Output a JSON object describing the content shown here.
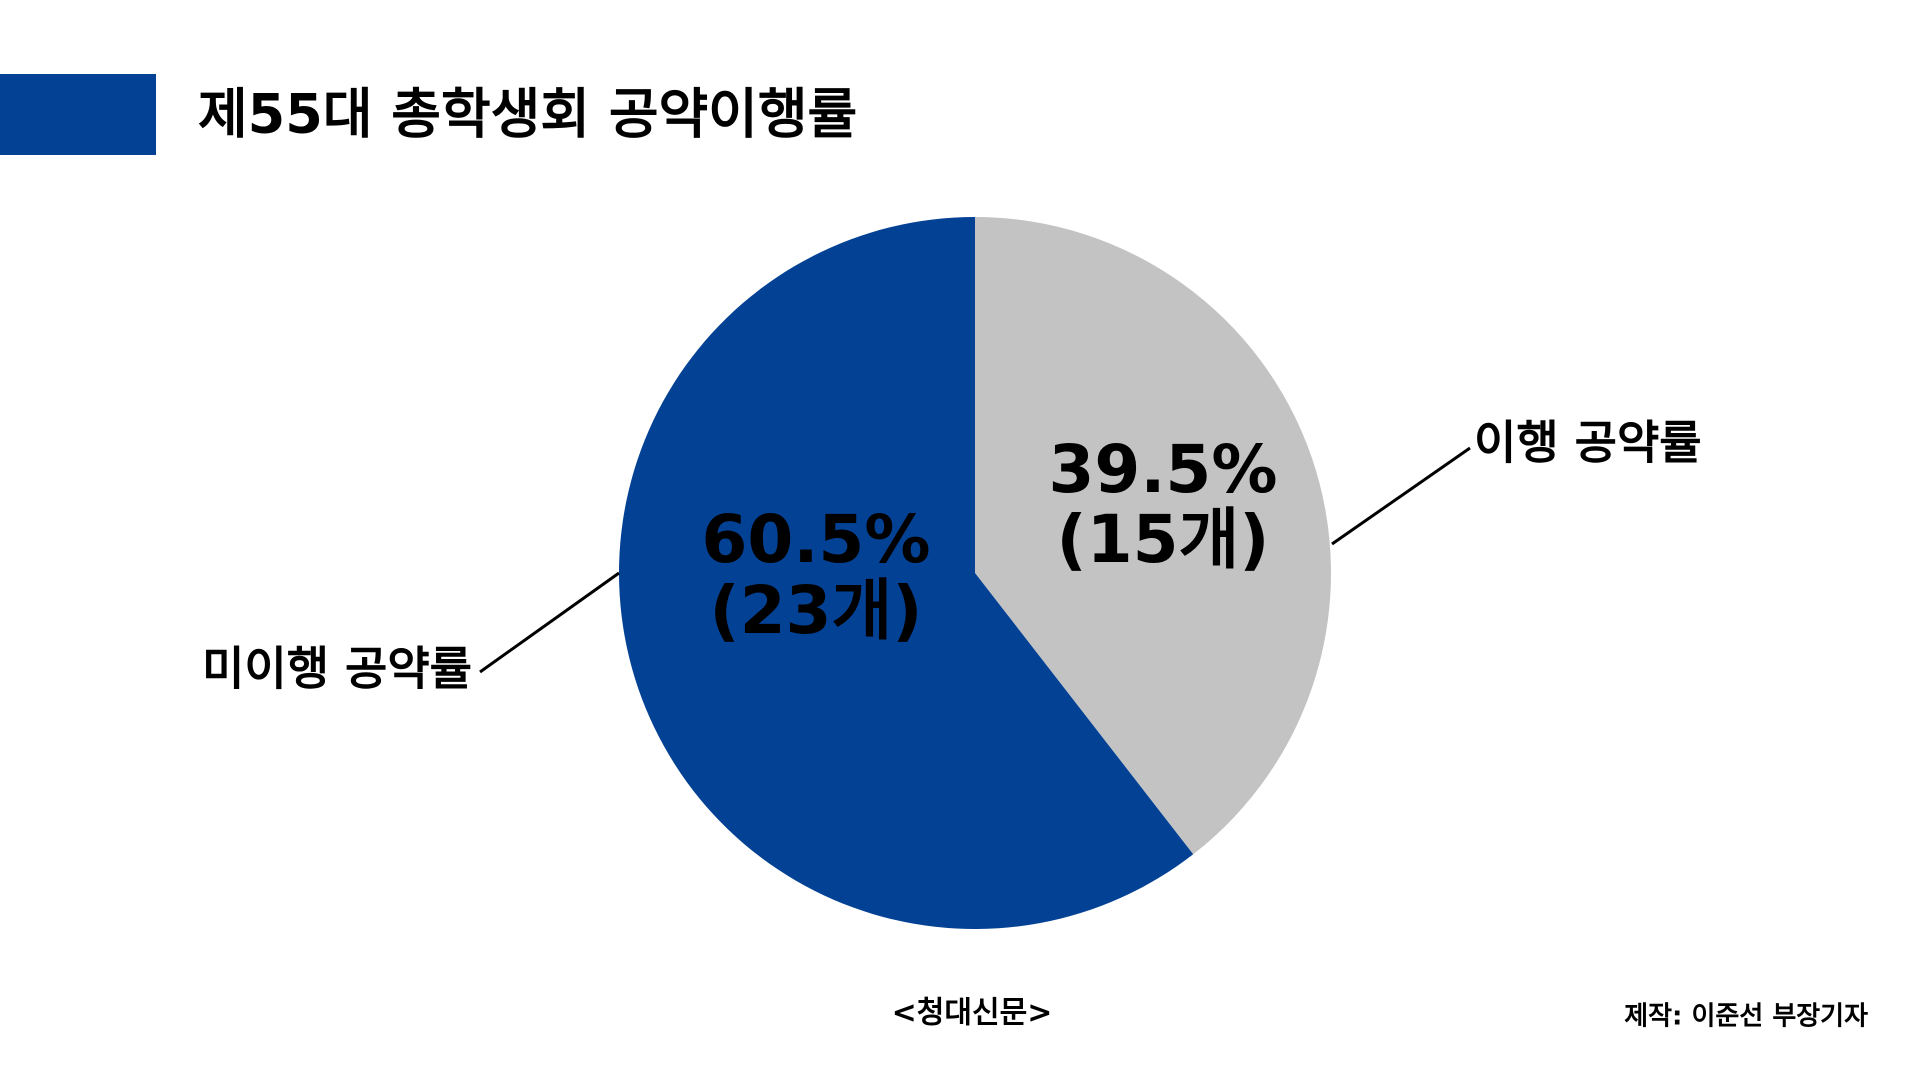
{
  "chart_data": {
    "type": "pie",
    "title": "제55대 총학생회 공약이행률",
    "categories": [
      "이행 공약률",
      "미이행 공약률"
    ],
    "values": [
      39.5,
      60.5
    ],
    "value_labels": [
      "39.5%",
      "60.5%"
    ],
    "counts": [
      15,
      23
    ],
    "count_labels": [
      "(15개)",
      "(23개)"
    ],
    "colors": [
      "#c3c3c3",
      "#034194"
    ],
    "source": "<청대신문>",
    "credit": "제작: 이준선 부장기자"
  }
}
